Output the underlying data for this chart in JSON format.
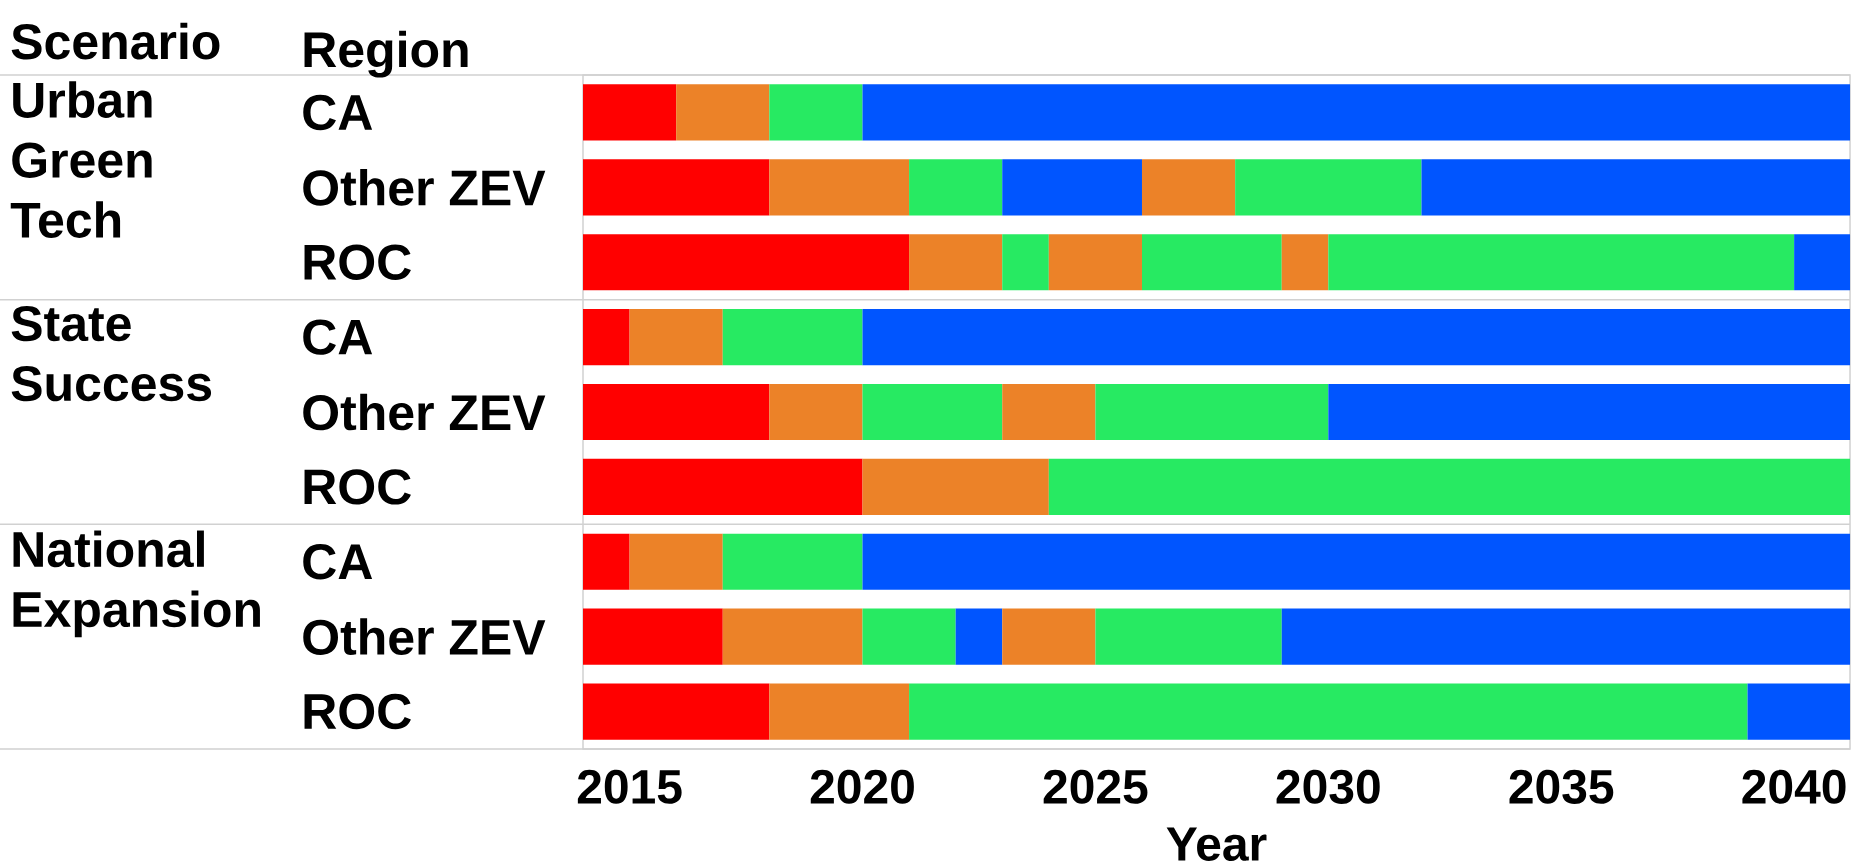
{
  "chart_data": {
    "type": "bar",
    "orientation": "horizontal",
    "xlabel": "Year",
    "categories": [
      "CA",
      "Other ZEV",
      "ROC",
      "CA",
      "Other ZEV",
      "ROC",
      "CA",
      "Other ZEV",
      "ROC"
    ],
    "annotations": [
      "Scenario",
      "Region",
      "Urban Green Tech",
      "State Success",
      "National Expansion"
    ],
    "series": [
      {
        "base": [
          2014,
          2014,
          2014,
          2014,
          2014,
          2014,
          2014,
          2014,
          2014
        ],
        "values": [
          2,
          4,
          7,
          1,
          4,
          6,
          1,
          3,
          4
        ],
        "colors": [
          "#ff0000",
          "#ff0000",
          "#ff0000",
          "#ff0000",
          "#ff0000",
          "#ff0000",
          "#ff0000",
          "#ff0000",
          "#ff0000"
        ]
      },
      {
        "base": [
          2016,
          2018,
          2021,
          2015,
          2018,
          2020,
          2015,
          2017,
          2018
        ],
        "values": [
          2,
          3,
          2,
          2,
          2,
          4,
          2,
          3,
          3
        ],
        "colors": [
          "#ec8228",
          "#ec8228",
          "#ec8228",
          "#ec8228",
          "#ec8228",
          "#ec8228",
          "#ec8228",
          "#ec8228",
          "#ec8228"
        ]
      },
      {
        "base": [
          2018,
          2021,
          2023,
          2017,
          2020,
          2024,
          2017,
          2020,
          2021
        ],
        "values": [
          2,
          2,
          1,
          3,
          3,
          17.2,
          3,
          2,
          18
        ],
        "colors": [
          "#27ea62",
          "#27ea62",
          "#27ea62",
          "#27ea62",
          "#27ea62",
          "#27ea62",
          "#27ea62",
          "#27ea62",
          "#27ea62"
        ]
      },
      {
        "base": [
          2020,
          2023,
          2024,
          2020,
          2023,
          null,
          2020,
          2022,
          2039
        ],
        "values": [
          21.2,
          3,
          2,
          21.2,
          2,
          null,
          21.2,
          1,
          2.2
        ],
        "colors": [
          "#0055ff",
          "#0055ff",
          "#ec8228",
          "#0055ff",
          "#ec8228",
          null,
          "#0055ff",
          "#0055ff",
          "#0055ff"
        ]
      },
      {
        "base": [
          null,
          2026,
          2026,
          null,
          2025,
          null,
          null,
          2023,
          null
        ],
        "values": [
          null,
          2,
          3,
          null,
          5,
          null,
          null,
          2,
          null
        ],
        "colors": [
          null,
          "#ec8228",
          "#27ea62",
          null,
          "#27ea62",
          null,
          null,
          "#ec8228",
          null
        ]
      },
      {
        "base": [
          null,
          2028,
          2029,
          null,
          2030,
          null,
          null,
          2025,
          null
        ],
        "values": [
          null,
          4,
          1,
          null,
          11.2,
          null,
          null,
          4,
          null
        ],
        "colors": [
          null,
          "#27ea62",
          "#ec8228",
          null,
          "#0055ff",
          null,
          null,
          "#27ea62",
          null
        ]
      },
      {
        "base": [
          null,
          2032,
          2030,
          null,
          null,
          null,
          null,
          2029,
          null
        ],
        "values": [
          null,
          9.2,
          10,
          null,
          null,
          null,
          null,
          12.2,
          null
        ],
        "colors": [
          null,
          "#0055ff",
          "#27ea62",
          null,
          null,
          null,
          null,
          "#0055ff",
          null
        ]
      },
      {
        "base": [
          null,
          null,
          2040,
          null,
          null,
          null,
          null,
          null,
          null
        ],
        "values": [
          null,
          null,
          1.2,
          null,
          null,
          null,
          null,
          null,
          null
        ],
        "colors": [
          null,
          null,
          "#0055ff",
          null,
          null,
          null,
          null,
          null,
          null
        ]
      }
    ],
    "xlim": [
      2014,
      2041.2
    ],
    "xticks": [
      2015,
      2020,
      2025,
      2030,
      2035,
      2040
    ]
  }
}
